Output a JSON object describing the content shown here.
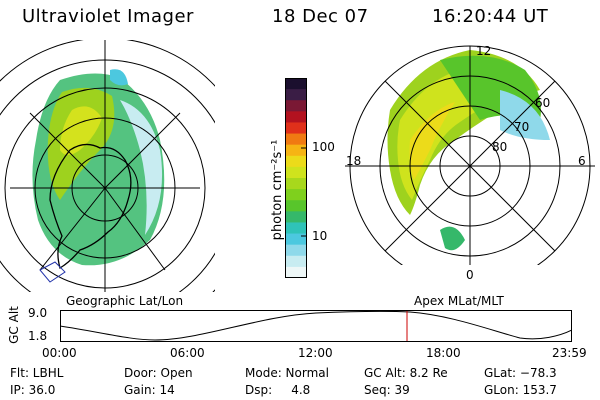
{
  "header": {
    "title": "Ultraviolet Imager",
    "date": "18 Dec 07",
    "time": "16:20:44 UT"
  },
  "left_panel": {
    "label": "Geographic Lat/Lon"
  },
  "right_panel": {
    "label": "Apex MLat/MLT",
    "mlt_labels": {
      "top": "12",
      "left": "18",
      "right": "6",
      "bottom": "0"
    },
    "lat_labels": [
      "60",
      "70",
      "80"
    ]
  },
  "colorbar": {
    "unit_label": "photon cm⁻²s⁻¹",
    "tick_labels": [
      "100",
      "10"
    ],
    "colors": [
      "#1b0f2e",
      "#3a1d45",
      "#7a1834",
      "#b3121f",
      "#e0301a",
      "#f07a12",
      "#f6b414",
      "#ecdb1a",
      "#cfe31d",
      "#a8d81c",
      "#7fd01d",
      "#58c52b",
      "#35b86a",
      "#2fc3b8",
      "#4cc8df",
      "#8fd9ea",
      "#c8ecf1",
      "#eef7f7"
    ]
  },
  "altitude_plot": {
    "ylabel": "GC Alt",
    "y_ticks": [
      "9.0",
      "1.8"
    ],
    "x_ticks": [
      "00:00",
      "06:00",
      "12:00",
      "18:00",
      "23:59"
    ],
    "marker_color": "#cc0000"
  },
  "info": {
    "flt": "Flt: LBHL",
    "ip": "IP: 36.0",
    "door": "Door: Open",
    "gain": "Gain: 14",
    "mode": "Mode: Normal",
    "dsp": "Dsp:     4.8",
    "gcalt": "GC Alt: 8.2 Re",
    "seq": "Seq: 39",
    "glat": "GLat: −78.3",
    "glon": "GLon: 153.7"
  }
}
